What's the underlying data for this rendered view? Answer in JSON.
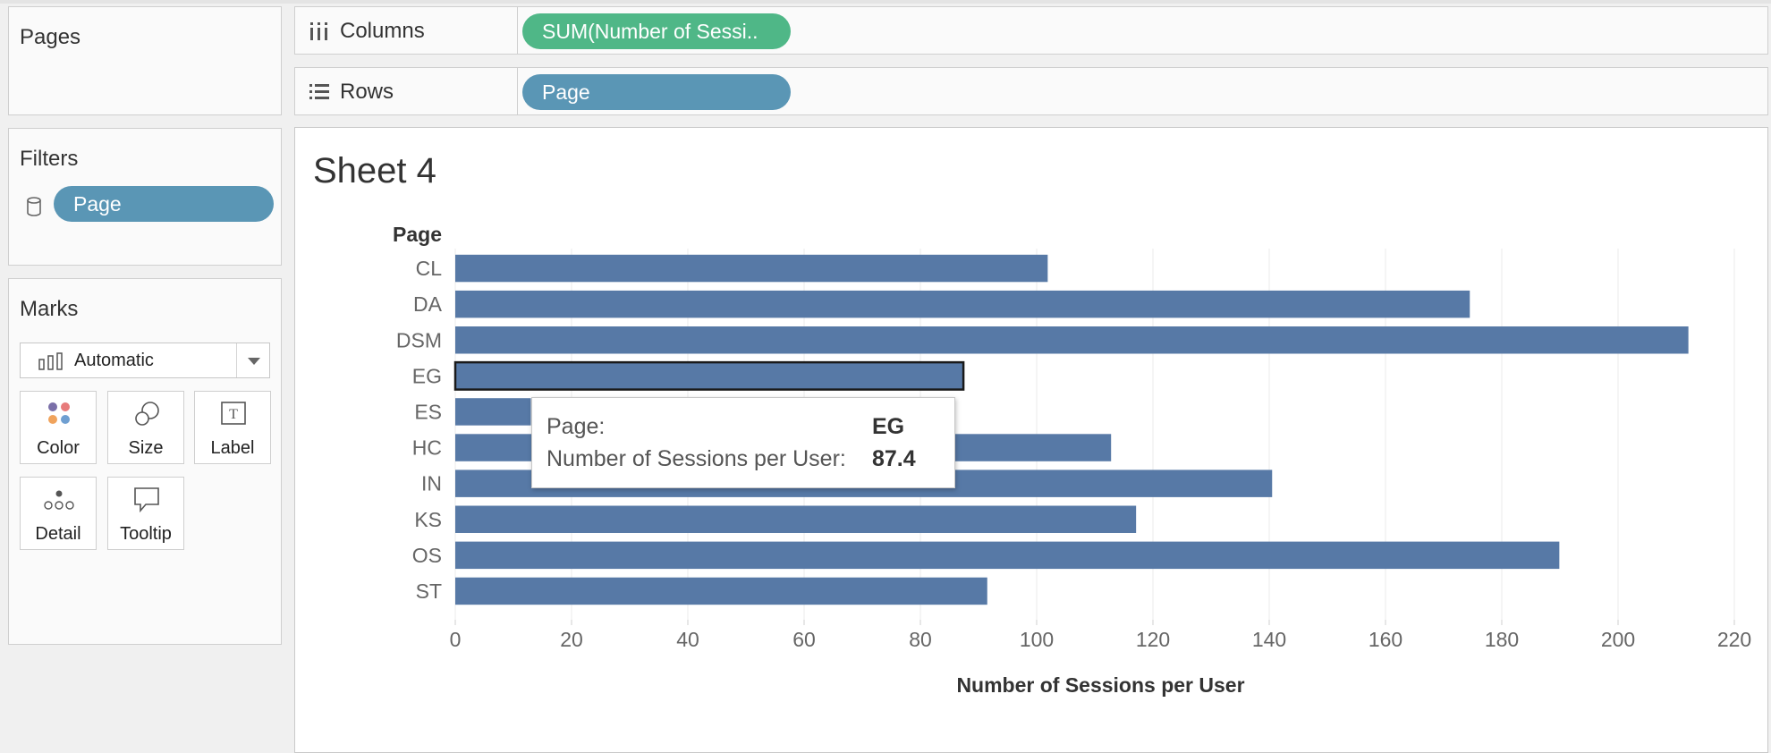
{
  "pages_panel": {
    "title": "Pages"
  },
  "filters_panel": {
    "title": "Filters",
    "filter_pill": "Page"
  },
  "marks_panel": {
    "title": "Marks",
    "mark_type": "Automatic",
    "buttons": [
      "Color",
      "Size",
      "Label",
      "Detail",
      "Tooltip"
    ]
  },
  "columns_shelf": {
    "label": "Columns",
    "pill": "SUM(Number of Sessi.."
  },
  "rows_shelf": {
    "label": "Rows",
    "pill": "Page"
  },
  "sheet": {
    "title": "Sheet 4"
  },
  "tooltip": {
    "field1_label": "Page:",
    "field1_value": "EG",
    "field2_label": "Number of Sessions per User:",
    "field2_value": "87.4"
  },
  "colors": {
    "bar": "#5779a6",
    "pill_blue": "#5a96b5",
    "pill_green": "#4fb787"
  },
  "chart_data": {
    "type": "bar",
    "orientation": "horizontal",
    "row_header": "Page",
    "categories": [
      "CL",
      "DA",
      "DSM",
      "EG",
      "ES",
      "HC",
      "IN",
      "KS",
      "OS",
      "ST"
    ],
    "values": [
      101.9,
      174.5,
      212.1,
      87.4,
      13,
      112.8,
      140.5,
      117.1,
      189.9,
      91.5
    ],
    "xlabel": "Number of Sessions per User",
    "xlim": [
      0,
      222
    ],
    "xticks": [
      0,
      20,
      40,
      60,
      80,
      100,
      120,
      140,
      160,
      180,
      200,
      220
    ],
    "grid": true,
    "highlighted": "EG"
  }
}
